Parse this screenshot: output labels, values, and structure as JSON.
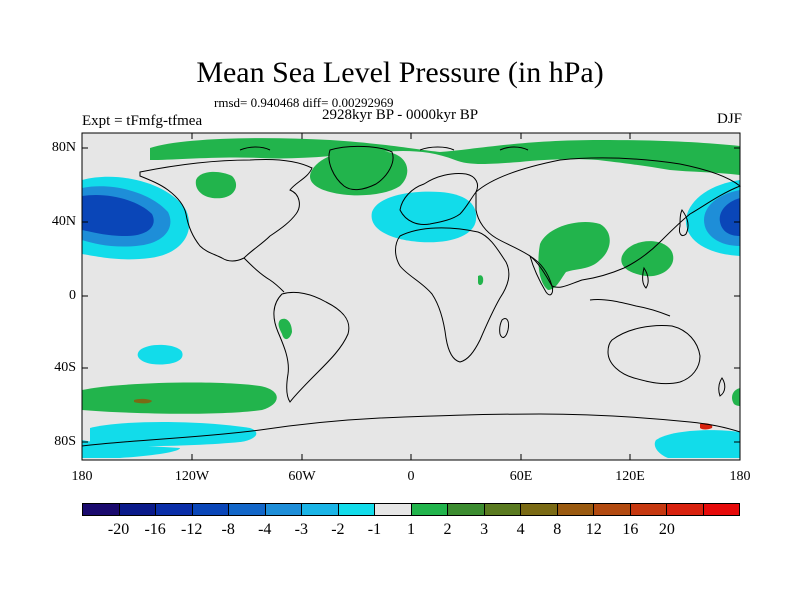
{
  "title": "Mean Sea Level Pressure (in hPa)",
  "stats": "rmsd= 0.940468 diff= 0.00292969",
  "period": "2928kyr BP - 0000kyr BP",
  "experiment": "Expt = tFmfg-tfmea",
  "season": "DJF",
  "lat_labels": [
    "80N",
    "40N",
    "0",
    "40S",
    "80S"
  ],
  "lon_labels": [
    "180",
    "120W",
    "60W",
    "0",
    "60E",
    "120E",
    "180"
  ],
  "colorbar": {
    "colors": [
      "#1a0a6e",
      "#0a1a8a",
      "#0a2ea8",
      "#0a46b8",
      "#1266c8",
      "#1e8ed8",
      "#1ab4e6",
      "#12dcea",
      "#e6e6e6",
      "#22b44c",
      "#3c8c30",
      "#5a7a20",
      "#7a6a14",
      "#9a5a10",
      "#b24a10",
      "#c63810",
      "#d8220e",
      "#e60a0a"
    ],
    "labels": [
      "-20",
      "-16",
      "-12",
      "-8",
      "-4",
      "-3",
      "-2",
      "-1",
      "1",
      "2",
      "3",
      "4",
      "8",
      "12",
      "16",
      "20"
    ]
  },
  "colors": {
    "ocean": "#e6e6e6",
    "cyan": "#12dcea",
    "cyan2": "#1ab4e6",
    "blue": "#1e8ed8",
    "blue2": "#1266c8",
    "blue3": "#0a46b8",
    "green": "#22b44c",
    "darkgreen": "#3c8c30",
    "brown": "#7a6a14"
  }
}
